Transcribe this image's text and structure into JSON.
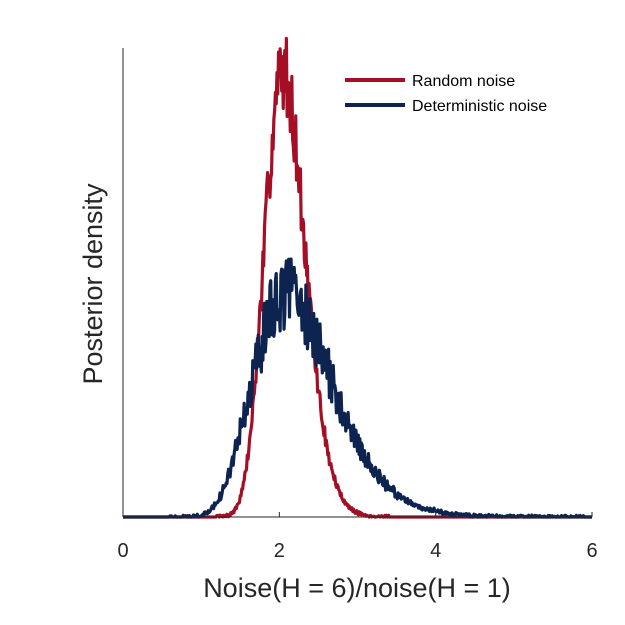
{
  "chart_data": {
    "type": "line",
    "title": "",
    "xlabel": "Noise(H = 6)/noise(H = 1)",
    "ylabel": "Posterior density",
    "xlim": [
      0,
      6
    ],
    "ylim": [
      0,
      1.05
    ],
    "xticks": [
      "0",
      "2",
      "4",
      "6"
    ],
    "xtick_values": [
      0,
      2,
      4,
      6
    ],
    "yticks_shown": false,
    "grid": false,
    "legend_position": "top-right",
    "series": [
      {
        "name": "Random noise",
        "color": "#a50f26",
        "shape": {
          "type": "lognormal",
          "mode": 2.05,
          "peak": 1.0,
          "sigma": 0.125,
          "start": 1.2,
          "end": 3.4,
          "noise": 0.09
        }
      },
      {
        "name": "Deterministic noise",
        "color": "#0d2450",
        "shape": {
          "type": "lognormal",
          "mode": 2.1,
          "peak": 0.5,
          "sigma": 0.24,
          "start": 0.6,
          "end": 5.9,
          "noise": 0.16
        }
      }
    ]
  }
}
